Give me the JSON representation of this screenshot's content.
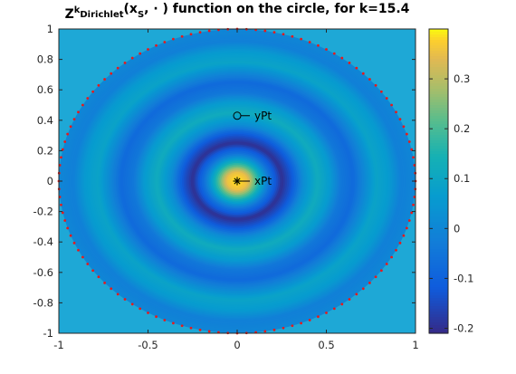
{
  "chart_data": {
    "type": "heatmap",
    "title": {
      "parts": [
        {
          "text": "Z",
          "style": "normal"
        },
        {
          "text": "k",
          "style": "sup"
        },
        {
          "text": "Dirichlet",
          "style": "sub"
        },
        {
          "text": "(x",
          "style": "normal"
        },
        {
          "text": "S",
          "style": "sub"
        },
        {
          "text": ", · ) function on the circle, for k=15.4",
          "style": "normal"
        }
      ]
    },
    "xlabel": "",
    "ylabel": "",
    "xlim": [
      -1,
      1
    ],
    "ylim": [
      -1,
      1
    ],
    "x_ticks": [
      -1,
      -0.5,
      0,
      0.5,
      1
    ],
    "x_tick_labels": [
      "-1",
      "-0.5",
      "0",
      "0.5",
      "1"
    ],
    "y_ticks": [
      -1,
      -0.8,
      -0.6,
      -0.4,
      -0.2,
      0,
      0.2,
      0.4,
      0.6,
      0.8,
      1
    ],
    "y_tick_labels": [
      "-1",
      "-0.8",
      "-0.6",
      "-0.4",
      "-0.2",
      "0",
      "0.2",
      "0.4",
      "0.6",
      "0.8",
      "1"
    ],
    "colorbar": {
      "range": [
        -0.21,
        0.4
      ],
      "ticks": [
        -0.2,
        -0.1,
        0,
        0.1,
        0.2,
        0.3
      ],
      "tick_labels": [
        "-0.2",
        "-0.1",
        "0",
        "0.1",
        "0.2",
        "0.3"
      ],
      "colormap": "parula"
    },
    "field": {
      "description": "radial oscillating field inside unit circle",
      "k": 15.4,
      "center": [
        0,
        0
      ],
      "peak_value": 0.4,
      "radial_profile": [
        {
          "r": 0.0,
          "value": 0.4
        },
        {
          "r": 0.06,
          "value": 0.35
        },
        {
          "r": 0.12,
          "value": 0.15
        },
        {
          "r": 0.18,
          "value": -0.05
        },
        {
          "r": 0.25,
          "value": -0.2
        },
        {
          "r": 0.31,
          "value": -0.12
        },
        {
          "r": 0.37,
          "value": 0.02
        },
        {
          "r": 0.45,
          "value": 0.12
        },
        {
          "r": 0.52,
          "value": 0.06
        },
        {
          "r": 0.58,
          "value": -0.04
        },
        {
          "r": 0.65,
          "value": -0.08
        },
        {
          "r": 0.71,
          "value": 0.0
        },
        {
          "r": 0.78,
          "value": 0.09
        },
        {
          "r": 0.85,
          "value": 0.06
        },
        {
          "r": 0.92,
          "value": -0.02
        },
        {
          "r": 1.0,
          "value": 0.0
        }
      ]
    },
    "boundary_points": {
      "count": 120,
      "radius": 1,
      "color": "#e8191b"
    },
    "points": [
      {
        "name": "xPt",
        "x": 0.0,
        "y": 0.0,
        "marker": "*",
        "label": "xPt"
      },
      {
        "name": "yPt",
        "x": 0.0,
        "y": 0.43,
        "marker": "o",
        "label": "yPt"
      }
    ],
    "background_color": "#1ea8d6"
  }
}
